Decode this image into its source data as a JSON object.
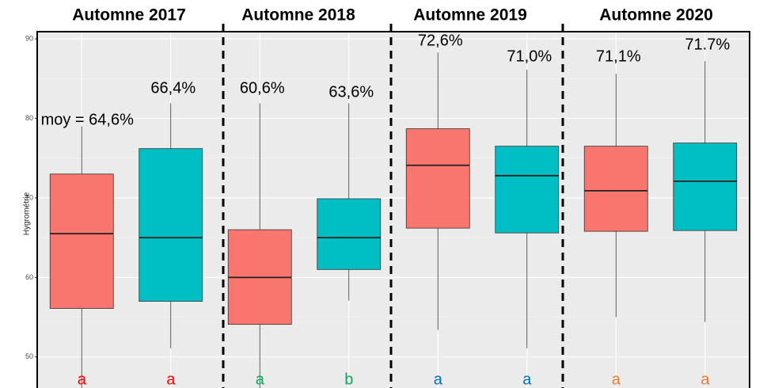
{
  "chart_data": {
    "type": "box",
    "y_label": "Hygrométrie",
    "periods": [
      "Automne 2017",
      "Automne 2018",
      "Automne 2019",
      "Automne 2020"
    ],
    "ylim": [
      46.1,
      90.9
    ],
    "yticks": [
      50,
      60,
      70,
      80,
      90
    ],
    "grid": true,
    "boxes": [
      {
        "color": "#f8766d",
        "min": 45,
        "q1": 56.1,
        "median": 65.5,
        "q3": 73.0,
        "max": 79.0,
        "annotation": "moy = 64,6%",
        "letter": "a",
        "letter_color": "#ff0000"
      },
      {
        "color": "#00bfc4",
        "min": 51.1,
        "q1": 57.0,
        "median": 65.0,
        "q3": 76.2,
        "max": 81.9,
        "annotation": "66,4%",
        "letter": "a",
        "letter_color": "#ff0000"
      },
      {
        "color": "#f8766d",
        "min": 45,
        "q1": 54.1,
        "median": 60.0,
        "q3": 66.0,
        "max": 81.9,
        "annotation": "60,6%",
        "letter": "a",
        "letter_color": "#00b050"
      },
      {
        "color": "#00bfc4",
        "min": 57.1,
        "q1": 61.0,
        "median": 65.0,
        "q3": 69.9,
        "max": 81.9,
        "annotation": "63,6%",
        "letter": "b",
        "letter_color": "#00b050"
      },
      {
        "color": "#f8766d",
        "min": 53.4,
        "q1": 66.2,
        "median": 74.1,
        "q3": 78.7,
        "max": 88.3,
        "annotation": "72,6%",
        "letter": "a",
        "letter_color": "#0070c0"
      },
      {
        "color": "#00bfc4",
        "min": 51.1,
        "q1": 65.6,
        "median": 72.8,
        "q3": 76.5,
        "max": 86.1,
        "annotation": "71,0%",
        "letter": "a",
        "letter_color": "#0070c0"
      },
      {
        "color": "#f8766d",
        "min": 55.0,
        "q1": 65.8,
        "median": 70.9,
        "q3": 76.5,
        "max": 85.6,
        "annotation": "71,1%",
        "letter": "a",
        "letter_color": "#ed7d31"
      },
      {
        "color": "#00bfc4",
        "min": 54.4,
        "q1": 65.9,
        "median": 72.1,
        "q3": 76.9,
        "max": 87.2,
        "annotation": "71.7%",
        "letter": "a",
        "letter_color": "#ed7d31"
      }
    ]
  }
}
